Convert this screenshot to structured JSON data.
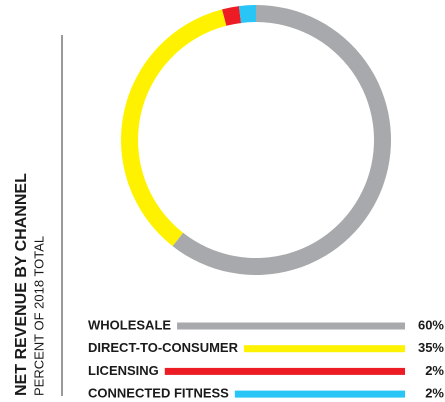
{
  "chart_data": {
    "type": "donut",
    "title": "NET REVENUE BY CHANNEL",
    "subtitle": "PERCENT OF 2018 TOTAL",
    "categories": [
      "WHOLESALE",
      "DIRECT-TO-CONSUMER",
      "LICENSING",
      "CONNECTED FITNESS"
    ],
    "values": [
      60,
      35,
      2,
      2
    ],
    "value_labels": [
      "60%",
      "35%",
      "2%",
      "2%"
    ],
    "colors": [
      "#a7a9ac",
      "#fff200",
      "#ed1c24",
      "#29c5f6"
    ]
  }
}
